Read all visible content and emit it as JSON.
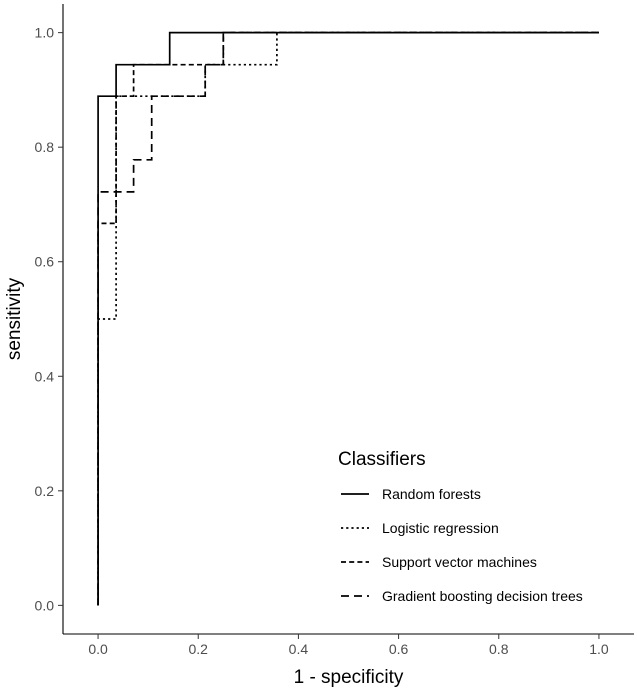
{
  "chart_data": {
    "type": "line",
    "title": "",
    "xlabel": "1 - specificity",
    "ylabel": "sensitivity",
    "xlim": [
      -0.07,
      1.07
    ],
    "ylim": [
      -0.05,
      1.05
    ],
    "x_ticks": [
      0.0,
      0.2,
      0.4,
      0.6,
      0.8,
      1.0
    ],
    "y_ticks": [
      0.0,
      0.2,
      0.4,
      0.6,
      0.8,
      1.0
    ],
    "x_tick_labels": [
      "0.0",
      "0.2",
      "0.4",
      "0.6",
      "0.8",
      "1.0"
    ],
    "y_tick_labels": [
      "0.0",
      "0.2",
      "0.4",
      "0.6",
      "0.8",
      "1.0"
    ],
    "grid": false,
    "legend": {
      "title": "Classifiers",
      "placement": "bottom-right"
    },
    "series": [
      {
        "name": "Random forests",
        "dash": "solid",
        "x": [
          0,
          0,
          0.036,
          0.036,
          0.143,
          0.143,
          1.0
        ],
        "y": [
          0,
          0.889,
          0.889,
          0.944,
          0.944,
          1.0,
          1.0
        ]
      },
      {
        "name": "Logistic regression",
        "dash": "dotted",
        "x": [
          0,
          0,
          0.036,
          0.036,
          0.071,
          0.071,
          0.214,
          0.214,
          0.357,
          0.357,
          1.0
        ],
        "y": [
          0,
          0.5,
          0.5,
          0.889,
          0.889,
          0.889,
          0.889,
          0.944,
          0.944,
          1.0,
          1.0
        ]
      },
      {
        "name": "Support vector machines",
        "dash": "dashed",
        "x": [
          0,
          0,
          0.036,
          0.036,
          0.071,
          0.071,
          0.143,
          0.143,
          0.25,
          0.25,
          1.0
        ],
        "y": [
          0,
          0.667,
          0.667,
          0.889,
          0.889,
          0.944,
          0.944,
          0.944,
          0.944,
          1.0,
          1.0
        ]
      },
      {
        "name": "Gradient boosting decision trees",
        "dash": "longdash",
        "x": [
          0,
          0,
          0.071,
          0.071,
          0.107,
          0.107,
          0.143,
          0.143,
          0.214,
          0.214,
          0.25,
          0.25,
          1.0
        ],
        "y": [
          0,
          0.722,
          0.722,
          0.778,
          0.778,
          0.889,
          0.889,
          0.889,
          0.889,
          0.944,
          0.944,
          1.0,
          1.0
        ]
      }
    ]
  }
}
